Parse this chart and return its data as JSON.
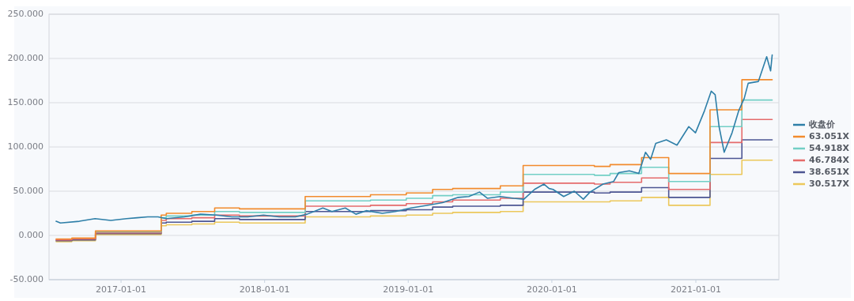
{
  "chart_data": {
    "type": "line",
    "xlim": [
      "2016-07-02",
      "2021-07-31"
    ],
    "xticks": [
      "2017-01-01",
      "2018-01-01",
      "2019-01-01",
      "2020-01-01",
      "2021-01-01"
    ],
    "ylim": [
      -50,
      250
    ],
    "yticks": [
      {
        "value": -50,
        "label": "-50.000"
      },
      {
        "value": 0,
        "label": "0.000"
      },
      {
        "value": 50,
        "label": "50.000"
      },
      {
        "value": 100,
        "label": "100.000"
      },
      {
        "value": 150,
        "label": "150.000"
      },
      {
        "value": 200,
        "label": "200.000"
      },
      {
        "value": 250,
        "label": "250.000"
      }
    ],
    "grid": "y",
    "legend": "right",
    "series": [
      {
        "name": "收盘价",
        "type": "line",
        "color": "#2e7fa8",
        "x": [
          "2016-07-20",
          "2016-07-31",
          "2016-09-17",
          "2016-10-27",
          "2016-12-06",
          "2017-01-15",
          "2017-02-11",
          "2017-03-10",
          "2017-04-05",
          "2017-04-26",
          "2017-06-11",
          "2017-07-22",
          "2017-08-31",
          "2017-10-10",
          "2017-11-19",
          "2017-12-29",
          "2018-02-07",
          "2018-03-20",
          "2018-04-19",
          "2018-05-29",
          "2018-06-21",
          "2018-07-25",
          "2018-08-21",
          "2018-09-16",
          "2018-10-27",
          "2018-11-29",
          "2019-01-08",
          "2019-02-17",
          "2019-03-29",
          "2019-05-08",
          "2019-06-04",
          "2019-07-01",
          "2019-07-21",
          "2019-08-23",
          "2019-09-26",
          "2019-10-22",
          "2019-11-18",
          "2019-12-12",
          "2019-12-25",
          "2020-01-04",
          "2020-01-31",
          "2020-02-27",
          "2020-03-21",
          "2020-04-07",
          "2020-05-10",
          "2020-06-06",
          "2020-06-19",
          "2020-07-16",
          "2020-08-09",
          "2020-08-26",
          "2020-09-08",
          "2020-09-21",
          "2020-10-18",
          "2020-11-14",
          "2020-12-14",
          "2020-12-31",
          "2021-01-23",
          "2021-02-09",
          "2021-02-19",
          "2021-03-01",
          "2021-03-14",
          "2021-04-03",
          "2021-04-20",
          "2021-05-04",
          "2021-05-14",
          "2021-06-09",
          "2021-06-30",
          "2021-07-10",
          "2021-07-14"
        ],
        "values": [
          16,
          14,
          16,
          19,
          17,
          19,
          20,
          21,
          21,
          19,
          21,
          24,
          23,
          21,
          21,
          23,
          21,
          21,
          24,
          31,
          27,
          31,
          24,
          28,
          25,
          27,
          31,
          34,
          37,
          43,
          44,
          49,
          42,
          44,
          42,
          41,
          52,
          58,
          53,
          52,
          44,
          50,
          41,
          49,
          58,
          61,
          71,
          73,
          70,
          94,
          86,
          104,
          108,
          102,
          123,
          116,
          141,
          163,
          159,
          123,
          94,
          116,
          141,
          155,
          172,
          174,
          202,
          186,
          204
        ]
      },
      {
        "name": "63.051X",
        "type": "step",
        "color": "#f28b2d",
        "x": [
          "2016-07-20",
          "2016-08-29",
          "2016-10-28",
          "2017-04-13",
          "2017-04-26",
          "2017-06-30",
          "2017-08-27",
          "2017-10-29",
          "2018-04-14",
          "2018-09-27",
          "2018-12-27",
          "2019-03-04",
          "2019-04-24",
          "2019-08-23",
          "2019-10-20",
          "2020-04-18",
          "2020-05-28",
          "2020-08-16",
          "2020-10-24",
          "2021-02-06",
          "2021-04-28",
          "2021-07-14"
        ],
        "values": [
          -4,
          -3,
          5,
          23,
          25,
          27,
          31,
          30,
          44,
          46,
          48,
          52,
          53,
          56,
          79,
          78,
          80,
          88,
          70,
          142,
          176,
          176
        ]
      },
      {
        "name": "54.918X",
        "type": "step",
        "color": "#72cfc5",
        "x": [
          "2016-10-28",
          "2017-04-13",
          "2017-04-26",
          "2017-06-30",
          "2017-08-27",
          "2017-10-29",
          "2018-04-14",
          "2018-09-27",
          "2018-12-27",
          "2019-03-04",
          "2019-04-24",
          "2019-08-23",
          "2019-10-20",
          "2020-04-18",
          "2020-05-28",
          "2020-08-16",
          "2020-10-24",
          "2021-02-06",
          "2021-04-28",
          "2021-07-14"
        ],
        "values": [
          4,
          20,
          22,
          23,
          27,
          26,
          39,
          40,
          42,
          45,
          46,
          49,
          69,
          68,
          70,
          77,
          61,
          123,
          153,
          153
        ]
      },
      {
        "name": "46.784X",
        "type": "step",
        "color": "#e56b6b",
        "x": [
          "2016-07-20",
          "2016-08-29",
          "2016-10-28",
          "2017-04-13",
          "2017-04-26",
          "2017-06-30",
          "2017-08-27",
          "2017-10-29",
          "2018-04-14",
          "2018-09-27",
          "2018-12-27",
          "2019-03-04",
          "2019-04-24",
          "2019-08-23",
          "2019-10-20",
          "2020-04-18",
          "2020-05-28",
          "2020-08-16",
          "2020-10-24",
          "2021-02-06",
          "2021-04-28",
          "2021-07-14"
        ],
        "values": [
          -5,
          -4,
          3,
          17,
          19,
          20,
          23,
          22,
          33,
          34,
          36,
          38,
          40,
          42,
          59,
          58,
          60,
          65,
          52,
          105,
          131,
          131
        ]
      },
      {
        "name": "38.651X",
        "type": "step",
        "color": "#4c5592",
        "x": [
          "2016-07-20",
          "2016-08-29",
          "2016-10-28",
          "2017-04-13",
          "2017-04-26",
          "2017-06-30",
          "2017-08-27",
          "2017-10-29",
          "2018-04-14",
          "2018-09-27",
          "2018-12-27",
          "2019-03-04",
          "2019-04-24",
          "2019-08-23",
          "2019-10-20",
          "2020-04-18",
          "2020-05-28",
          "2020-08-16",
          "2020-10-24",
          "2021-02-06",
          "2021-04-28",
          "2021-07-14"
        ],
        "values": [
          -6,
          -5,
          2,
          14,
          15,
          16,
          19,
          18,
          27,
          28,
          29,
          32,
          33,
          34,
          49,
          48,
          49,
          54,
          43,
          87,
          108,
          108
        ]
      },
      {
        "name": "30.517X",
        "type": "step",
        "color": "#ecc85b",
        "x": [
          "2016-07-20",
          "2016-08-29",
          "2016-10-28",
          "2017-04-13",
          "2017-04-26",
          "2017-06-30",
          "2017-08-27",
          "2017-10-29",
          "2018-04-14",
          "2018-09-27",
          "2018-12-27",
          "2019-03-04",
          "2019-04-24",
          "2019-08-23",
          "2019-10-20",
          "2020-04-18",
          "2020-05-28",
          "2020-08-16",
          "2020-10-24",
          "2021-02-06",
          "2021-04-28",
          "2021-07-14"
        ],
        "values": [
          -7,
          -6,
          1,
          11,
          12,
          13,
          15,
          14,
          21,
          22,
          23,
          25,
          26,
          27,
          38,
          38,
          39,
          43,
          34,
          69,
          85,
          85
        ]
      }
    ]
  }
}
